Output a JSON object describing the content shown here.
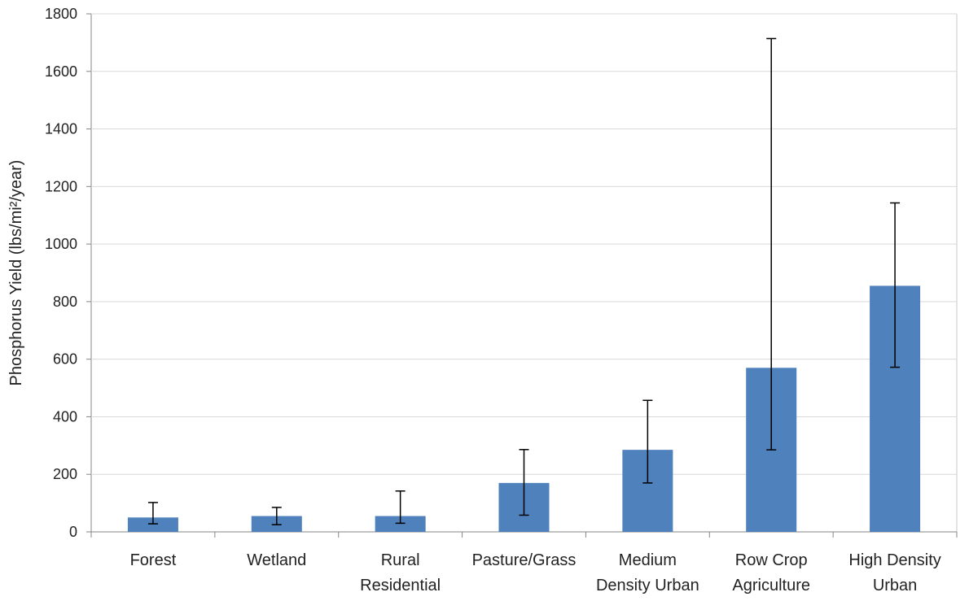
{
  "chart_data": {
    "type": "bar",
    "title": "",
    "xlabel": "",
    "ylabel": "Phosphorus Yield (lbs/mi²/year)",
    "ylim": [
      0,
      1800
    ],
    "yticks": [
      "0",
      "200",
      "400",
      "600",
      "800",
      "1000",
      "1200",
      "1400",
      "1600",
      "1800"
    ],
    "grid": true,
    "legend": "none",
    "categories": [
      [
        "Forest"
      ],
      [
        "Wetland"
      ],
      [
        "Rural",
        "Residential"
      ],
      [
        "Pasture/Grass"
      ],
      [
        "Medium",
        "Density Urban"
      ],
      [
        "Row Crop",
        "Agriculture"
      ],
      [
        "High Density",
        "Urban"
      ]
    ],
    "series": [
      {
        "values": [
          50,
          55,
          55,
          170,
          285,
          570,
          855
        ],
        "error_low": [
          28,
          25,
          30,
          58,
          170,
          285,
          572
        ],
        "error_high": [
          102,
          85,
          142,
          286,
          457,
          1714,
          1143
        ],
        "color": "#4f81bd"
      }
    ]
  }
}
